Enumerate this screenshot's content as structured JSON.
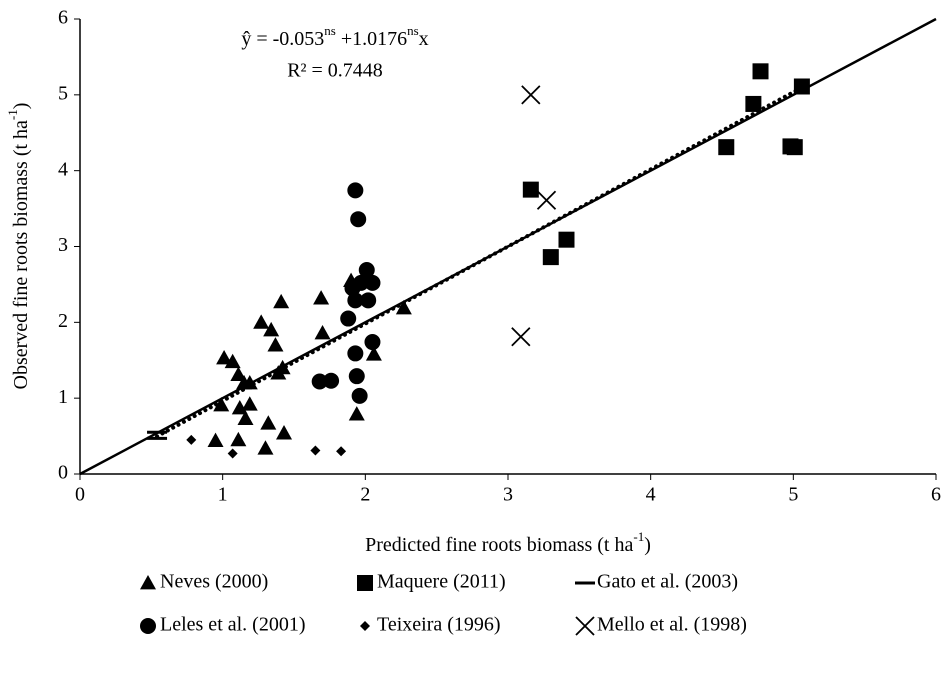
{
  "chart_data": {
    "type": "scatter",
    "equation": [
      "ŷ = -0.053",
      "ns",
      " +1.0176",
      "ns",
      "x"
    ],
    "r_squared": "R² = 0.7448",
    "intercept": -0.053,
    "slope": 1.0176,
    "x_label": [
      "Predicted fine roots biomass (t ha",
      "-1",
      ")"
    ],
    "y_label": [
      "Observed fine roots biomass (t ha",
      "-1",
      ")"
    ],
    "xlim": [
      0,
      6
    ],
    "ylim": [
      0,
      6
    ],
    "xticks": [
      0,
      1,
      2,
      3,
      4,
      5,
      6
    ],
    "yticks": [
      0,
      1,
      2,
      3,
      4,
      5,
      6
    ],
    "series": [
      {
        "name": "Neves (2000)",
        "marker": "triangle",
        "color": "#000000",
        "x": [
          1.01,
          1.07,
          1.11,
          1.15,
          1.19,
          1.27,
          1.34,
          1.37,
          1.41,
          1.42,
          1.39,
          1.69,
          1.7,
          1.9,
          1.94,
          2.06,
          2.27,
          0.99,
          0.95,
          1.11,
          1.12,
          1.19,
          1.16,
          1.32,
          1.3,
          1.43
        ],
        "values": [
          1.53,
          1.48,
          1.31,
          1.2,
          1.2,
          2.0,
          1.9,
          1.7,
          2.27,
          1.4,
          1.33,
          2.32,
          1.86,
          2.55,
          0.79,
          1.58,
          2.19,
          0.91,
          0.44,
          0.45,
          0.87,
          0.92,
          0.73,
          0.67,
          0.34,
          0.54
        ]
      },
      {
        "name": "Maquere (2011)",
        "marker": "square",
        "color": "#000000",
        "x": [
          3.16,
          3.3,
          3.41,
          4.53,
          4.72,
          4.77,
          4.98,
          5.01,
          5.06
        ],
        "values": [
          3.75,
          2.86,
          3.09,
          4.31,
          4.88,
          5.31,
          4.32,
          4.31,
          5.11
        ]
      },
      {
        "name": "Gato et al. (2003)",
        "marker": "dash",
        "color": "#000000",
        "x": [
          0.54,
          0.54
        ],
        "values": [
          0.55,
          0.47
        ]
      },
      {
        "name": "Leles et al. (2001)",
        "marker": "circle",
        "color": "#000000",
        "x": [
          1.93,
          1.95,
          2.01,
          2.05,
          1.97,
          1.91,
          1.93,
          2.02,
          1.88,
          1.93,
          2.05,
          1.94,
          1.96,
          1.68,
          1.76
        ],
        "values": [
          3.74,
          3.36,
          2.69,
          2.52,
          2.52,
          2.45,
          2.29,
          2.29,
          2.05,
          1.59,
          1.74,
          1.29,
          1.03,
          1.22,
          1.23
        ]
      },
      {
        "name": "Teixeira (1996)",
        "marker": "diamond",
        "color": "#000000",
        "x": [
          0.78,
          1.07,
          1.65,
          1.83
        ],
        "values": [
          0.45,
          0.27,
          0.31,
          0.3
        ]
      },
      {
        "name": "Mello et al. (1998)",
        "marker": "cross",
        "color": "#000000",
        "x": [
          3.16,
          3.27,
          3.09
        ],
        "values": [
          5.0,
          3.61,
          1.81
        ]
      }
    ]
  }
}
